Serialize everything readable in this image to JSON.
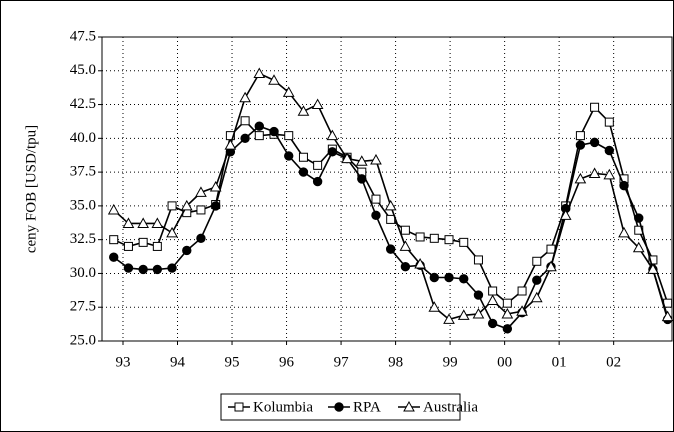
{
  "chart_data": {
    "type": "line",
    "y_label": "ceny FOB [USD/tpu]",
    "x": [
      1992.83,
      1993.1,
      1993.37,
      1993.63,
      1993.9,
      1994.17,
      1994.43,
      1994.7,
      1994.97,
      1995.24,
      1995.5,
      1995.77,
      1996.04,
      1996.31,
      1996.57,
      1996.84,
      1997.11,
      1997.38,
      1997.64,
      1997.91,
      1998.18,
      1998.45,
      1998.71,
      1998.98,
      1999.25,
      1999.52,
      1999.78,
      2000.05,
      2000.32,
      2000.59,
      2000.85,
      2001.12,
      2001.39,
      2001.65,
      2001.92,
      2002.19,
      2002.46,
      2002.72,
      2002.99
    ],
    "series": [
      {
        "name": "Kolumbia",
        "color": "#000000",
        "marker": "square",
        "values": [
          32.5,
          32.0,
          32.3,
          32.0,
          35.0,
          34.5,
          34.7,
          35.1,
          40.2,
          41.3,
          40.2,
          40.3,
          40.2,
          38.6,
          38.0,
          39.2,
          38.6,
          37.5,
          35.5,
          34.0,
          33.2,
          32.7,
          32.6,
          32.5,
          32.3,
          31.0,
          28.7,
          27.8,
          28.7,
          30.9,
          31.8,
          35.0,
          40.2,
          42.3,
          41.2,
          37.0,
          33.2,
          31.0,
          27.8
        ]
      },
      {
        "name": "RPA",
        "color": "#000000",
        "marker": "circle",
        "values": [
          31.2,
          30.4,
          30.3,
          30.3,
          30.4,
          31.7,
          32.6,
          35.0,
          39.0,
          40.0,
          40.9,
          40.5,
          38.7,
          37.5,
          36.8,
          39.0,
          38.5,
          37.0,
          34.3,
          31.8,
          30.5,
          30.6,
          29.7,
          29.7,
          29.6,
          28.4,
          26.3,
          25.9,
          27.1,
          29.5,
          30.5,
          34.8,
          39.5,
          39.7,
          39.1,
          36.5,
          34.1,
          30.3,
          26.6
        ]
      },
      {
        "name": "Australia",
        "color": "#000000",
        "marker": "triangle",
        "values": [
          34.7,
          33.7,
          33.7,
          33.7,
          33.0,
          35.0,
          36.0,
          36.4,
          39.5,
          43.0,
          44.8,
          44.3,
          43.4,
          42.0,
          42.5,
          40.2,
          38.5,
          38.3,
          38.4,
          35.0,
          32.0,
          30.7,
          27.5,
          26.6,
          26.9,
          27.0,
          28.0,
          27.0,
          27.2,
          28.2,
          30.5,
          34.3,
          37.0,
          37.4,
          37.3,
          33.0,
          31.9,
          30.3,
          26.8
        ]
      }
    ],
    "xlim": [
      1992.615,
      2003.07
    ],
    "xticks": [
      {
        "value": 1993,
        "label": "93"
      },
      {
        "value": 1994,
        "label": "94"
      },
      {
        "value": 1995,
        "label": "95"
      },
      {
        "value": 1996,
        "label": "96"
      },
      {
        "value": 1997,
        "label": "97"
      },
      {
        "value": 1998,
        "label": "98"
      },
      {
        "value": 1999,
        "label": "99"
      },
      {
        "value": 2000,
        "label": "00"
      },
      {
        "value": 2001,
        "label": "01"
      },
      {
        "value": 2002,
        "label": "02"
      }
    ],
    "ylim": [
      25,
      47.5
    ],
    "yticks": [
      {
        "value": 25,
        "label": "25.0"
      },
      {
        "value": 27.5,
        "label": "27.5"
      },
      {
        "value": 30,
        "label": "30.0"
      },
      {
        "value": 32.5,
        "label": "32.5"
      },
      {
        "value": 35,
        "label": "35.0"
      },
      {
        "value": 37.5,
        "label": "37.5"
      },
      {
        "value": 40,
        "label": "40.0"
      },
      {
        "value": 42.5,
        "label": "42.5"
      },
      {
        "value": 45,
        "label": "45.0"
      },
      {
        "value": 47.5,
        "label": "47.5"
      }
    ],
    "grid": true,
    "legend": "bottom"
  }
}
